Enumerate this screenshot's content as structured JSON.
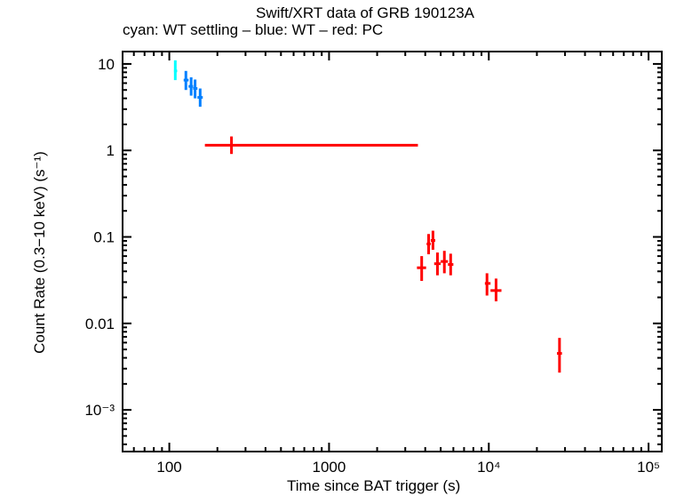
{
  "chart_data": {
    "type": "scatter",
    "title": "Swift/XRT data of GRB 190123A",
    "subtitle": "cyan: WT settling – blue: WT – red: PC",
    "xlabel": "Time since BAT trigger (s)",
    "ylabel": "Count Rate (0.3−10 keV) (s⁻¹)",
    "xscale": "log",
    "yscale": "log",
    "xlim": [
      51,
      121000
    ],
    "ylim": [
      0.00033,
      13.9
    ],
    "x_ticks": [
      {
        "v": 100,
        "label": "100"
      },
      {
        "v": 1000,
        "label": "1000"
      },
      {
        "v": 10000,
        "label": "10⁴"
      },
      {
        "v": 100000,
        "label": "10⁵"
      }
    ],
    "y_ticks": [
      {
        "v": 10,
        "label": "10"
      },
      {
        "v": 1,
        "label": "1"
      },
      {
        "v": 0.1,
        "label": "0.1"
      },
      {
        "v": 0.01,
        "label": "0.01"
      },
      {
        "v": 0.001,
        "label": "10⁻³"
      }
    ],
    "grid": false,
    "series": [
      {
        "mode": "WT settling",
        "color": "#00ffff",
        "points": [
          {
            "t": 109,
            "t_lo": 107,
            "t_hi": 112,
            "rate": 8.3,
            "rate_lo": 6.5,
            "rate_hi": 11.0
          }
        ]
      },
      {
        "mode": "WT",
        "color": "#0080ff",
        "points": [
          {
            "t": 127,
            "t_lo": 123,
            "t_hi": 132,
            "rate": 6.5,
            "rate_lo": 5.0,
            "rate_hi": 8.3
          },
          {
            "t": 137,
            "t_lo": 132,
            "t_hi": 141,
            "rate": 5.5,
            "rate_lo": 4.3,
            "rate_hi": 7.0
          },
          {
            "t": 145,
            "t_lo": 141,
            "t_hi": 150,
            "rate": 5.2,
            "rate_lo": 4.0,
            "rate_hi": 6.6
          },
          {
            "t": 156,
            "t_lo": 150,
            "t_hi": 162,
            "rate": 4.1,
            "rate_lo": 3.2,
            "rate_hi": 5.2
          }
        ]
      },
      {
        "mode": "PC",
        "color": "#ff0000",
        "points": [
          {
            "t": 245,
            "t_lo": 167,
            "t_hi": 3600,
            "rate": 1.15,
            "rate_lo": 0.91,
            "rate_hi": 1.45
          },
          {
            "t": 3800,
            "t_lo": 3550,
            "t_hi": 4050,
            "rate": 0.044,
            "rate_lo": 0.031,
            "rate_hi": 0.06
          },
          {
            "t": 4200,
            "t_lo": 4080,
            "t_hi": 4330,
            "rate": 0.083,
            "rate_lo": 0.063,
            "rate_hi": 0.108
          },
          {
            "t": 4470,
            "t_lo": 4330,
            "t_hi": 4620,
            "rate": 0.091,
            "rate_lo": 0.071,
            "rate_hi": 0.118
          },
          {
            "t": 4770,
            "t_lo": 4550,
            "t_hi": 5000,
            "rate": 0.049,
            "rate_lo": 0.036,
            "rate_hi": 0.066
          },
          {
            "t": 5270,
            "t_lo": 5000,
            "t_hi": 5550,
            "rate": 0.052,
            "rate_lo": 0.038,
            "rate_hi": 0.069
          },
          {
            "t": 5770,
            "t_lo": 5550,
            "t_hi": 6000,
            "rate": 0.048,
            "rate_lo": 0.036,
            "rate_hi": 0.064
          },
          {
            "t": 9740,
            "t_lo": 9450,
            "t_hi": 10250,
            "rate": 0.029,
            "rate_lo": 0.021,
            "rate_hi": 0.038
          },
          {
            "t": 11100,
            "t_lo": 10250,
            "t_hi": 12000,
            "rate": 0.024,
            "rate_lo": 0.018,
            "rate_hi": 0.033
          },
          {
            "t": 27700,
            "t_lo": 26700,
            "t_hi": 28700,
            "rate": 0.0045,
            "rate_lo": 0.0027,
            "rate_hi": 0.0068
          }
        ]
      }
    ]
  }
}
